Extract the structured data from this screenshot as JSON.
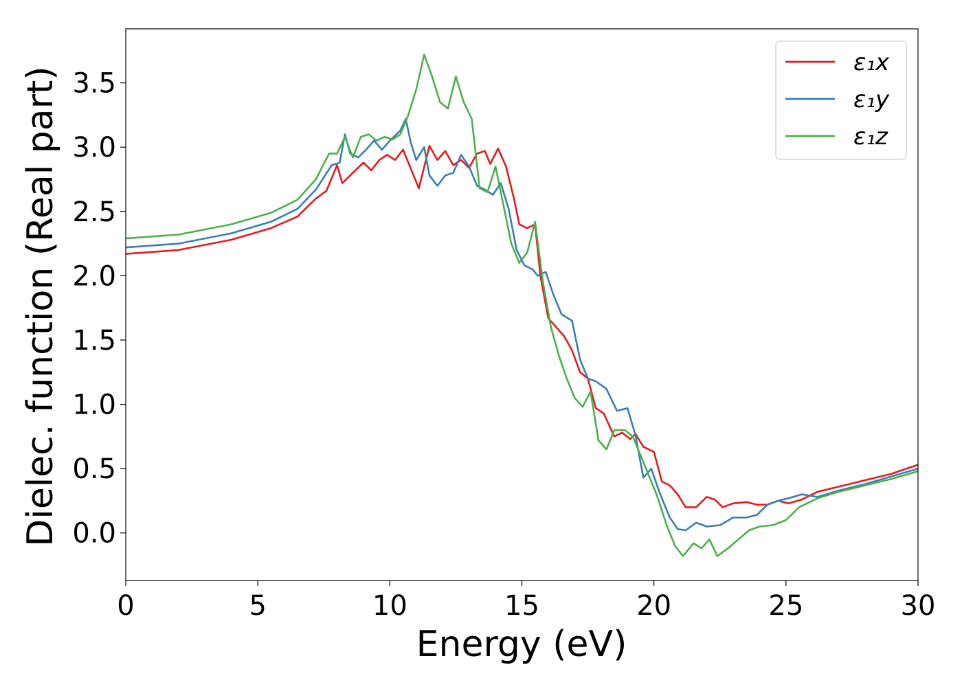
{
  "chart_data": {
    "type": "line",
    "title": "",
    "xlabel": "Energy (eV)",
    "ylabel": "Dielec. function (Real part)",
    "xlim": [
      0,
      30
    ],
    "ylim": [
      -0.37,
      3.92
    ],
    "xticks": [
      0,
      5,
      10,
      15,
      20,
      25,
      30
    ],
    "xtick_labels": [
      "0",
      "5",
      "10",
      "15",
      "20",
      "25",
      "30"
    ],
    "yticks": [
      0.0,
      0.5,
      1.0,
      1.5,
      2.0,
      2.5,
      3.0,
      3.5
    ],
    "ytick_labels": [
      "0.0",
      "0.5",
      "1.0",
      "1.5",
      "2.0",
      "2.5",
      "3.0",
      "3.5"
    ],
    "grid": false,
    "legend_position": "top-right",
    "series": [
      {
        "name": "ε₁x",
        "color": "#e41a1c",
        "points": [
          [
            0,
            2.17
          ],
          [
            2,
            2.2
          ],
          [
            4,
            2.28
          ],
          [
            5.5,
            2.37
          ],
          [
            6.5,
            2.46
          ],
          [
            7.2,
            2.6
          ],
          [
            7.6,
            2.66
          ],
          [
            8.0,
            2.86
          ],
          [
            8.2,
            2.72
          ],
          [
            8.6,
            2.8
          ],
          [
            9.0,
            2.88
          ],
          [
            9.3,
            2.82
          ],
          [
            9.6,
            2.9
          ],
          [
            9.9,
            2.94
          ],
          [
            10.2,
            2.9
          ],
          [
            10.5,
            2.98
          ],
          [
            10.8,
            2.83
          ],
          [
            11.1,
            2.68
          ],
          [
            11.5,
            3.01
          ],
          [
            11.8,
            2.9
          ],
          [
            12.1,
            2.97
          ],
          [
            12.4,
            2.86
          ],
          [
            12.7,
            2.9
          ],
          [
            13.0,
            2.84
          ],
          [
            13.3,
            2.95
          ],
          [
            13.6,
            2.97
          ],
          [
            13.8,
            2.87
          ],
          [
            14.1,
            2.99
          ],
          [
            14.4,
            2.85
          ],
          [
            14.7,
            2.6
          ],
          [
            14.9,
            2.4
          ],
          [
            15.2,
            2.37
          ],
          [
            15.5,
            2.4
          ],
          [
            15.7,
            2.0
          ],
          [
            16.0,
            1.67
          ],
          [
            16.3,
            1.6
          ],
          [
            16.6,
            1.53
          ],
          [
            16.9,
            1.42
          ],
          [
            17.2,
            1.25
          ],
          [
            17.5,
            1.2
          ],
          [
            17.8,
            0.97
          ],
          [
            18.1,
            0.93
          ],
          [
            18.5,
            0.75
          ],
          [
            18.8,
            0.78
          ],
          [
            19.1,
            0.73
          ],
          [
            19.3,
            0.77
          ],
          [
            19.6,
            0.67
          ],
          [
            20.0,
            0.63
          ],
          [
            20.3,
            0.4
          ],
          [
            20.6,
            0.37
          ],
          [
            20.9,
            0.3
          ],
          [
            21.2,
            0.2
          ],
          [
            21.6,
            0.2
          ],
          [
            22.0,
            0.28
          ],
          [
            22.3,
            0.26
          ],
          [
            22.6,
            0.2
          ],
          [
            23.0,
            0.23
          ],
          [
            23.5,
            0.24
          ],
          [
            23.9,
            0.22
          ],
          [
            24.3,
            0.22
          ],
          [
            24.7,
            0.25
          ],
          [
            25.1,
            0.23
          ],
          [
            25.6,
            0.26
          ],
          [
            26.2,
            0.32
          ],
          [
            27.0,
            0.36
          ],
          [
            28.0,
            0.41
          ],
          [
            29.0,
            0.46
          ],
          [
            30.0,
            0.53
          ]
        ]
      },
      {
        "name": "ε₁y",
        "color": "#377eb8",
        "points": [
          [
            0,
            2.22
          ],
          [
            2,
            2.25
          ],
          [
            4,
            2.33
          ],
          [
            5.5,
            2.42
          ],
          [
            6.5,
            2.52
          ],
          [
            7.2,
            2.67
          ],
          [
            7.8,
            2.86
          ],
          [
            8.1,
            2.88
          ],
          [
            8.3,
            3.1
          ],
          [
            8.5,
            2.95
          ],
          [
            8.8,
            2.92
          ],
          [
            9.1,
            2.98
          ],
          [
            9.4,
            3.05
          ],
          [
            9.7,
            2.98
          ],
          [
            10.0,
            3.05
          ],
          [
            10.4,
            3.13
          ],
          [
            10.6,
            3.22
          ],
          [
            10.8,
            3.03
          ],
          [
            11.0,
            2.9
          ],
          [
            11.3,
            3.0
          ],
          [
            11.5,
            2.78
          ],
          [
            11.8,
            2.7
          ],
          [
            12.1,
            2.78
          ],
          [
            12.4,
            2.8
          ],
          [
            12.7,
            2.94
          ],
          [
            13.0,
            2.85
          ],
          [
            13.3,
            2.7
          ],
          [
            13.6,
            2.67
          ],
          [
            13.9,
            2.63
          ],
          [
            14.2,
            2.72
          ],
          [
            14.5,
            2.52
          ],
          [
            14.8,
            2.2
          ],
          [
            15.1,
            2.08
          ],
          [
            15.4,
            2.05
          ],
          [
            15.6,
            2.0
          ],
          [
            15.9,
            2.03
          ],
          [
            16.2,
            1.85
          ],
          [
            16.5,
            1.7
          ],
          [
            16.9,
            1.65
          ],
          [
            17.2,
            1.35
          ],
          [
            17.5,
            1.2
          ],
          [
            17.8,
            1.18
          ],
          [
            18.2,
            1.12
          ],
          [
            18.6,
            0.95
          ],
          [
            19.0,
            0.97
          ],
          [
            19.3,
            0.76
          ],
          [
            19.6,
            0.43
          ],
          [
            19.9,
            0.5
          ],
          [
            20.2,
            0.32
          ],
          [
            20.6,
            0.12
          ],
          [
            20.9,
            0.03
          ],
          [
            21.2,
            0.02
          ],
          [
            21.6,
            0.08
          ],
          [
            22.0,
            0.05
          ],
          [
            22.5,
            0.06
          ],
          [
            23.0,
            0.12
          ],
          [
            23.5,
            0.12
          ],
          [
            23.9,
            0.14
          ],
          [
            24.3,
            0.22
          ],
          [
            24.7,
            0.25
          ],
          [
            25.1,
            0.27
          ],
          [
            25.6,
            0.3
          ],
          [
            26.2,
            0.28
          ],
          [
            27.0,
            0.33
          ],
          [
            28.0,
            0.38
          ],
          [
            29.0,
            0.44
          ],
          [
            30.0,
            0.5
          ]
        ]
      },
      {
        "name": "ε₁z",
        "color": "#4daf4a",
        "points": [
          [
            0,
            2.29
          ],
          [
            2,
            2.32
          ],
          [
            4,
            2.4
          ],
          [
            5.5,
            2.49
          ],
          [
            6.5,
            2.59
          ],
          [
            7.2,
            2.75
          ],
          [
            7.7,
            2.95
          ],
          [
            8.0,
            2.95
          ],
          [
            8.3,
            3.08
          ],
          [
            8.6,
            2.92
          ],
          [
            8.9,
            3.08
          ],
          [
            9.2,
            3.1
          ],
          [
            9.5,
            3.05
          ],
          [
            9.8,
            3.08
          ],
          [
            10.1,
            3.06
          ],
          [
            10.4,
            3.1
          ],
          [
            10.7,
            3.25
          ],
          [
            11.0,
            3.45
          ],
          [
            11.3,
            3.72
          ],
          [
            11.6,
            3.55
          ],
          [
            11.9,
            3.35
          ],
          [
            12.2,
            3.3
          ],
          [
            12.5,
            3.55
          ],
          [
            12.8,
            3.35
          ],
          [
            13.1,
            3.22
          ],
          [
            13.4,
            2.68
          ],
          [
            13.7,
            2.65
          ],
          [
            14.0,
            2.85
          ],
          [
            14.3,
            2.55
          ],
          [
            14.6,
            2.25
          ],
          [
            14.9,
            2.1
          ],
          [
            15.2,
            2.18
          ],
          [
            15.5,
            2.42
          ],
          [
            15.8,
            1.95
          ],
          [
            16.1,
            1.6
          ],
          [
            16.4,
            1.38
          ],
          [
            16.7,
            1.2
          ],
          [
            17.0,
            1.05
          ],
          [
            17.3,
            0.98
          ],
          [
            17.6,
            1.1
          ],
          [
            17.9,
            0.72
          ],
          [
            18.2,
            0.65
          ],
          [
            18.5,
            0.8
          ],
          [
            18.9,
            0.8
          ],
          [
            19.2,
            0.75
          ],
          [
            19.5,
            0.6
          ],
          [
            19.8,
            0.45
          ],
          [
            20.1,
            0.3
          ],
          [
            20.5,
            0.05
          ],
          [
            20.8,
            -0.1
          ],
          [
            21.1,
            -0.18
          ],
          [
            21.5,
            -0.08
          ],
          [
            21.8,
            -0.12
          ],
          [
            22.1,
            -0.05
          ],
          [
            22.4,
            -0.18
          ],
          [
            22.8,
            -0.12
          ],
          [
            23.2,
            -0.05
          ],
          [
            23.6,
            0.02
          ],
          [
            24.0,
            0.05
          ],
          [
            24.5,
            0.06
          ],
          [
            25.0,
            0.1
          ],
          [
            25.5,
            0.2
          ],
          [
            26.2,
            0.27
          ],
          [
            27.0,
            0.32
          ],
          [
            28.0,
            0.37
          ],
          [
            29.0,
            0.42
          ],
          [
            30.0,
            0.48
          ]
        ]
      }
    ]
  }
}
